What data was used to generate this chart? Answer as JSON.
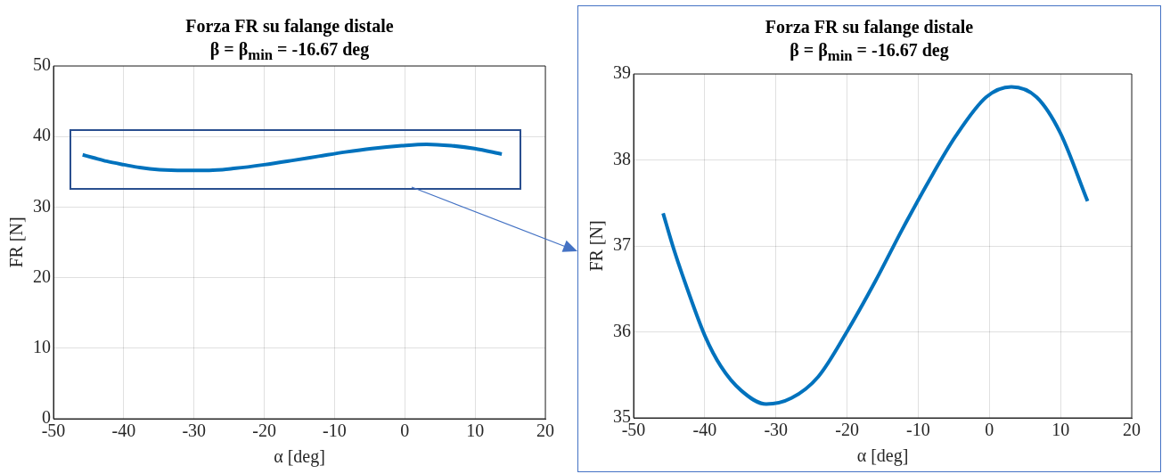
{
  "chart_data": [
    {
      "type": "line",
      "title": "Forza FR su falange distale",
      "subtitle": "β = β$_{min}$ = -16.67 deg",
      "xlabel": "α [deg]",
      "ylabel": "FR [N]",
      "xlim": [
        -50,
        20
      ],
      "xticks": [
        -50,
        -40,
        -30,
        -20,
        -10,
        0,
        10,
        20
      ],
      "ylim": [
        0,
        50
      ],
      "yticks": [
        0,
        10,
        20,
        30,
        40,
        50
      ],
      "grid": true,
      "legend": false,
      "series": [
        {
          "color": "#0072bd",
          "x": [
            -45.85,
            -44.34,
            -42.45,
            -39.95,
            -37.73,
            -34.9,
            -31.36,
            -27.82,
            -24.04,
            -20.03,
            -16.02,
            -12.25,
            -8.47,
            -4.7,
            -0.45,
            3.09,
            6.63,
            9.93,
            13.8
          ],
          "values": [
            37.4,
            37.0,
            36.5,
            36.0,
            35.6,
            35.3,
            35.2,
            35.2,
            35.5,
            36.0,
            36.6,
            37.2,
            37.8,
            38.3,
            38.7,
            38.9,
            38.7,
            38.3,
            37.5
          ]
        }
      ]
    },
    {
      "type": "line",
      "title": "Forza FR su falange distale",
      "subtitle": "β = β$_{min}$ = -16.67 deg",
      "xlabel": "α [deg]",
      "ylabel": "FR [N]",
      "xlim": [
        -50,
        20
      ],
      "xticks": [
        -50,
        -40,
        -30,
        -20,
        -10,
        0,
        10,
        20
      ],
      "ylim": [
        35,
        39
      ],
      "yticks": [
        35,
        36,
        37,
        38,
        39
      ],
      "grid": true,
      "legend": false,
      "series": [
        {
          "color": "#0072bd",
          "x": [
            -45.85,
            -44.34,
            -42.45,
            -39.95,
            -37.73,
            -34.9,
            -31.36,
            -27.82,
            -24.04,
            -20.03,
            -16.02,
            -12.25,
            -8.47,
            -4.7,
            -0.45,
            3.09,
            6.63,
            9.93,
            13.8
          ],
          "values": [
            37.38,
            36.96,
            36.5,
            35.95,
            35.6,
            35.32,
            35.16,
            35.23,
            35.48,
            36.0,
            36.59,
            37.19,
            37.76,
            38.28,
            38.73,
            38.85,
            38.73,
            38.32,
            37.52
          ]
        }
      ]
    }
  ]
}
